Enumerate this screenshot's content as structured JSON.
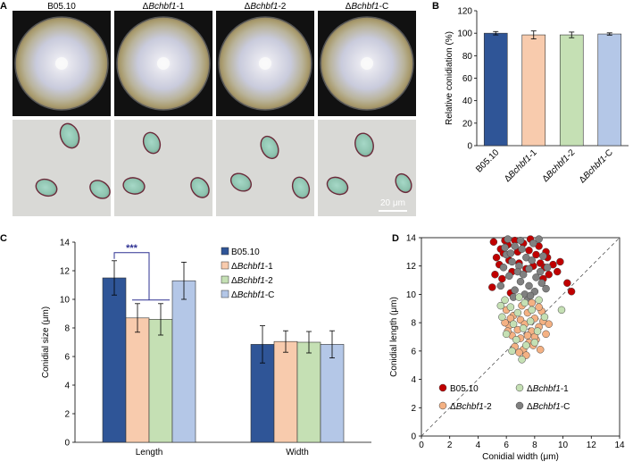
{
  "panels": {
    "A": "A",
    "B": "B",
    "C": "C",
    "D": "D"
  },
  "panel_a": {
    "strains": [
      {
        "prefix": "",
        "italic": "B05.10",
        "suffix": "",
        "plain": true
      },
      {
        "prefix": "Δ",
        "italic": "Bchbf1",
        "suffix": "-1",
        "plain": false
      },
      {
        "prefix": "Δ",
        "italic": "Bchbf1",
        "suffix": "-2",
        "plain": false
      },
      {
        "prefix": "Δ",
        "italic": "Bchbf1",
        "suffix": "-C",
        "plain": false
      }
    ],
    "scale_bar_label": "20 μm"
  },
  "colors": {
    "B05.10": "#2f5597",
    "KO1": "#f8cbad",
    "KO2": "#c5e0b4",
    "KOC": "#b4c7e7",
    "scatter_B0510": "#c00000",
    "scatter_KO1": "#c5e0b4",
    "scatter_KO2": "#f4b183",
    "scatter_KOC": "#808080"
  },
  "chart_data": [
    {
      "id": "B",
      "type": "bar",
      "ylabel": "Relative conidiation (%)",
      "ylim": [
        0,
        120
      ],
      "yticks": [
        0,
        20,
        40,
        60,
        80,
        100,
        120
      ],
      "categories": [
        {
          "prefix": "",
          "italic": "B05.10",
          "suffix": "",
          "plain": true
        },
        {
          "prefix": "Δ",
          "italic": "Bchbf1",
          "suffix": "-1",
          "plain": false
        },
        {
          "prefix": "Δ",
          "italic": "Bchbf1",
          "suffix": "-2",
          "plain": false
        },
        {
          "prefix": "Δ",
          "italic": "Bchbf1",
          "suffix": "-C",
          "plain": false
        }
      ],
      "values": [
        100,
        98.5,
        98.5,
        99.3
      ],
      "errors": [
        1.5,
        3.5,
        2.5,
        1.0
      ],
      "grid": false
    },
    {
      "id": "C",
      "type": "bar",
      "ylabel": "Conidial size (μm)",
      "ylim": [
        0,
        14
      ],
      "yticks": [
        0,
        2,
        4,
        6,
        8,
        10,
        12,
        14
      ],
      "groups": [
        "Length",
        "Width"
      ],
      "series": [
        {
          "name": {
            "prefix": "",
            "italic": "B05.10",
            "suffix": "",
            "plain": true
          },
          "values": [
            11.5,
            6.85
          ],
          "errors": [
            1.2,
            1.3
          ]
        },
        {
          "name": {
            "prefix": "Δ",
            "italic": "Bchbf1",
            "suffix": "-1",
            "plain": false
          },
          "values": [
            8.7,
            7.05
          ],
          "errors": [
            1.0,
            0.75
          ]
        },
        {
          "name": {
            "prefix": "Δ",
            "italic": "Bchbf1",
            "suffix": "-2",
            "plain": false
          },
          "values": [
            8.6,
            7.0
          ],
          "errors": [
            1.1,
            0.75
          ]
        },
        {
          "name": {
            "prefix": "Δ",
            "italic": "Bchbf1",
            "suffix": "-C",
            "plain": false
          },
          "values": [
            11.3,
            6.85
          ],
          "errors": [
            1.3,
            0.95
          ]
        }
      ],
      "annotation": "***",
      "legend": "top-right",
      "grid": false
    },
    {
      "id": "D",
      "type": "scatter",
      "xlabel": "Conidial width (μm)",
      "ylabel": "Conidial length (μm)",
      "xlim": [
        0,
        14
      ],
      "ylim": [
        0,
        14
      ],
      "xticks": [
        0,
        2,
        4,
        6,
        8,
        10,
        12,
        14
      ],
      "yticks": [
        0,
        2,
        4,
        6,
        8,
        10,
        12,
        14
      ],
      "diagonal": "y = x",
      "legend": "bottom",
      "series": [
        {
          "key": "B05.10",
          "name": {
            "prefix": "",
            "italic": "B05.10",
            "suffix": "",
            "plain": true
          },
          "points": [
            [
              5.1,
              13.7
            ],
            [
              5.6,
              13.2
            ],
            [
              5.3,
              12.6
            ],
            [
              5.8,
              12.9
            ],
            [
              6.1,
              13.5
            ],
            [
              5.5,
              12.1
            ],
            [
              6.2,
              12.4
            ],
            [
              6.6,
              13.8
            ],
            [
              7.2,
              13.6
            ],
            [
              7.6,
              13.1
            ],
            [
              8.1,
              12.8
            ],
            [
              8.4,
              12.2
            ],
            [
              8.9,
              12.6
            ],
            [
              9.3,
              12.1
            ],
            [
              9.0,
              11.4
            ],
            [
              8.6,
              11.1
            ],
            [
              9.6,
              11.6
            ],
            [
              6.4,
              11.6
            ],
            [
              5.7,
              11.1
            ],
            [
              5.2,
              11.4
            ],
            [
              7.9,
              12.0
            ],
            [
              8.3,
              13.4
            ],
            [
              8.8,
              13.0
            ],
            [
              10.3,
              10.8
            ],
            [
              10.6,
              10.2
            ],
            [
              6.9,
              12.2
            ],
            [
              7.4,
              11.8
            ],
            [
              5.0,
              10.5
            ],
            [
              6.3,
              10.1
            ],
            [
              7.7,
              13.9
            ],
            [
              5.9,
              13.8
            ],
            [
              8.7,
              11.9
            ],
            [
              9.8,
              12.3
            ],
            [
              6.8,
              13.0
            ]
          ]
        },
        {
          "key": "KOC",
          "name": {
            "prefix": "Δ",
            "italic": "Bchbf1",
            "suffix": "-C",
            "plain": false
          },
          "points": [
            [
              6.1,
              13.9
            ],
            [
              6.6,
              13.4
            ],
            [
              7.1,
              13.2
            ],
            [
              7.4,
              12.6
            ],
            [
              7.9,
              13.6
            ],
            [
              8.3,
              13.9
            ],
            [
              6.9,
              12.0
            ],
            [
              7.6,
              11.8
            ],
            [
              6.4,
              12.3
            ],
            [
              5.8,
              11.9
            ],
            [
              6.2,
              11.3
            ],
            [
              7.0,
              10.9
            ],
            [
              7.6,
              10.6
            ],
            [
              8.1,
              11.2
            ],
            [
              8.5,
              10.8
            ],
            [
              6.6,
              10.3
            ],
            [
              7.3,
              10.0
            ],
            [
              8.0,
              10.2
            ],
            [
              5.6,
              10.6
            ],
            [
              6.8,
              11.6
            ],
            [
              7.8,
              12.4
            ],
            [
              8.6,
              12.7
            ],
            [
              6.0,
              12.8
            ],
            [
              7.2,
              11.4
            ],
            [
              8.4,
              11.6
            ],
            [
              6.5,
              9.8
            ],
            [
              7.5,
              9.6
            ],
            [
              8.8,
              10.4
            ],
            [
              7.0,
              13.8
            ],
            [
              5.9,
              13.3
            ],
            [
              8.9,
              11.9
            ],
            [
              6.3,
              12.9
            ],
            [
              7.7,
              9.9
            ]
          ]
        },
        {
          "key": "KO2",
          "name": {
            "prefix": "Δ",
            "italic": "Bchbf1",
            "suffix": "-2",
            "plain": false
          },
          "points": [
            [
              6.0,
              8.9
            ],
            [
              6.5,
              8.5
            ],
            [
              7.0,
              8.2
            ],
            [
              7.5,
              8.7
            ],
            [
              8.0,
              8.3
            ],
            [
              8.5,
              8.8
            ],
            [
              6.2,
              7.8
            ],
            [
              6.8,
              7.5
            ],
            [
              7.3,
              7.9
            ],
            [
              7.8,
              7.4
            ],
            [
              8.3,
              7.7
            ],
            [
              8.8,
              7.2
            ],
            [
              6.4,
              7.1
            ],
            [
              7.0,
              6.9
            ],
            [
              7.6,
              6.6
            ],
            [
              8.1,
              6.8
            ],
            [
              6.6,
              6.3
            ],
            [
              7.2,
              6.1
            ],
            [
              7.9,
              6.4
            ],
            [
              7.4,
              5.7
            ],
            [
              8.4,
              6.1
            ],
            [
              6.1,
              7.4
            ],
            [
              8.6,
              8.1
            ],
            [
              6.3,
              8.3
            ],
            [
              7.1,
              9.2
            ],
            [
              7.8,
              9.4
            ],
            [
              8.3,
              9.1
            ],
            [
              6.9,
              5.9
            ],
            [
              9.0,
              7.9
            ],
            [
              5.9,
              8.0
            ],
            [
              7.5,
              7.1
            ],
            [
              8.0,
              7.0
            ]
          ]
        },
        {
          "key": "KO1",
          "name": {
            "prefix": "Δ",
            "italic": "Bchbf1",
            "suffix": "-1",
            "plain": false
          },
          "points": [
            [
              5.9,
              9.6
            ],
            [
              6.3,
              9.1
            ],
            [
              6.8,
              8.7
            ],
            [
              7.3,
              9.4
            ],
            [
              7.8,
              8.9
            ],
            [
              8.3,
              9.6
            ],
            [
              5.7,
              8.4
            ],
            [
              6.5,
              7.9
            ],
            [
              7.2,
              7.6
            ],
            [
              7.7,
              8.1
            ],
            [
              8.2,
              7.4
            ],
            [
              6.0,
              7.2
            ],
            [
              6.7,
              6.8
            ],
            [
              7.4,
              6.4
            ],
            [
              8.0,
              6.6
            ],
            [
              6.4,
              6.0
            ],
            [
              7.1,
              5.4
            ],
            [
              8.7,
              8.4
            ],
            [
              5.6,
              9.2
            ],
            [
              9.9,
              8.9
            ],
            [
              6.9,
              9.8
            ]
          ]
        }
      ],
      "grid": false
    }
  ]
}
